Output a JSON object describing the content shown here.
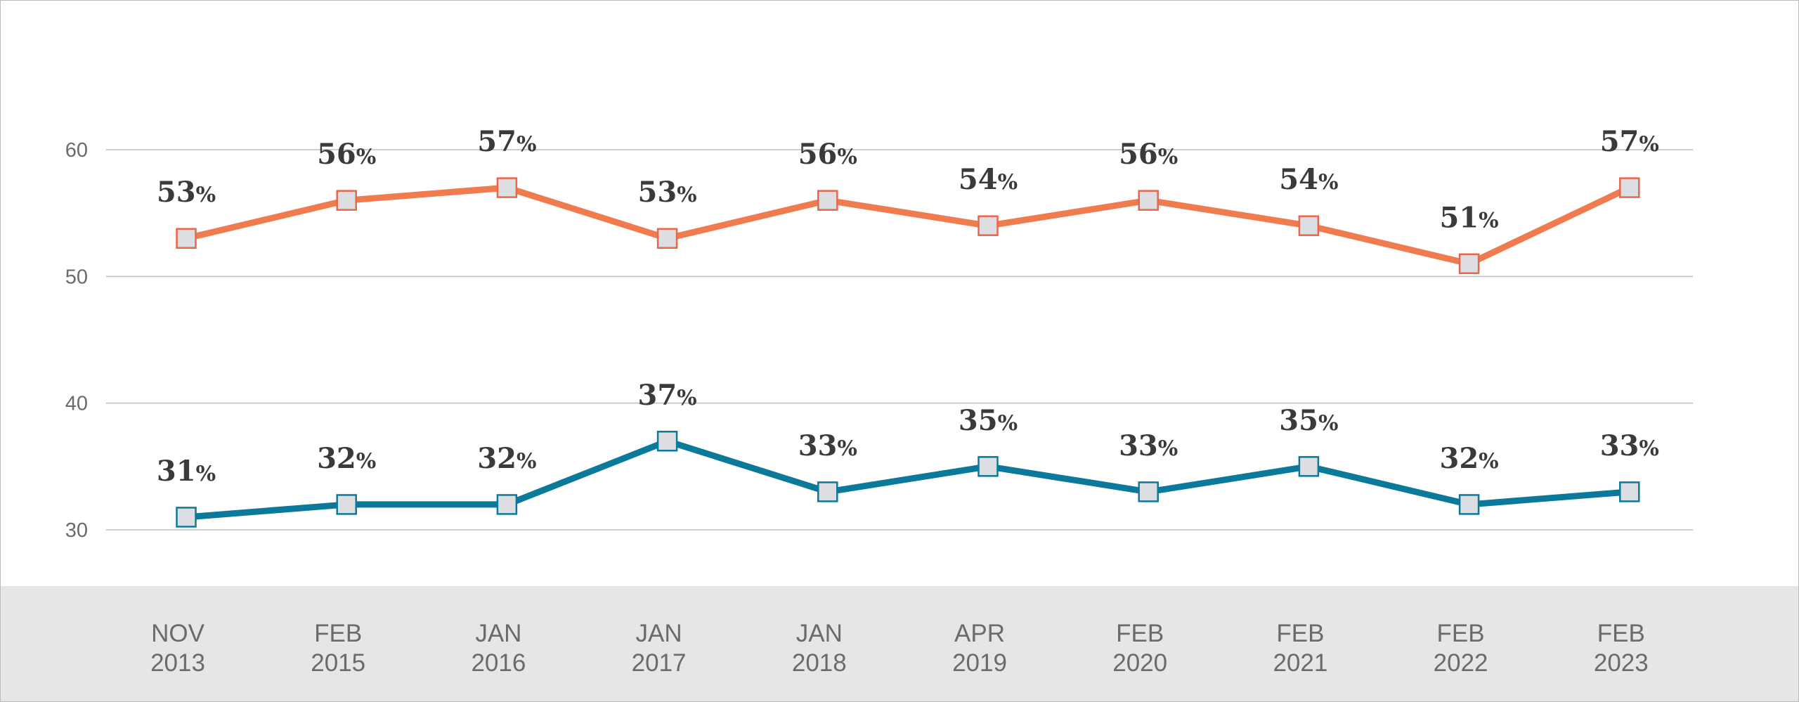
{
  "chart_data": {
    "type": "line",
    "x": [
      [
        "NOV",
        "2013"
      ],
      [
        "FEB",
        "2015"
      ],
      [
        "JAN",
        "2016"
      ],
      [
        "JAN",
        "2017"
      ],
      [
        "JAN",
        "2018"
      ],
      [
        "APR",
        "2019"
      ],
      [
        "FEB",
        "2020"
      ],
      [
        "FEB",
        "2021"
      ],
      [
        "FEB",
        "2022"
      ],
      [
        "FEB",
        "2023"
      ]
    ],
    "series": [
      {
        "values": [
          53,
          56,
          57,
          53,
          56,
          54,
          56,
          54,
          51,
          57
        ],
        "labels": [
          "53",
          "56",
          "57",
          "53",
          "56",
          "54",
          "56",
          "54",
          "51",
          "57"
        ],
        "color": "#ef7b4f",
        "marker_stroke": "#e8674c"
      },
      {
        "values": [
          31,
          32,
          32,
          37,
          33,
          35,
          33,
          35,
          32,
          33
        ],
        "labels": [
          "31",
          "32",
          "32",
          "37",
          "33",
          "35",
          "33",
          "35",
          "32",
          "33"
        ],
        "color": "#0b7a9a",
        "marker_stroke": "#0b7a9a"
      }
    ],
    "label_suffix": "%",
    "yticks": [
      "30",
      "40",
      "50",
      "60"
    ],
    "ytick_values": [
      30,
      40,
      50,
      60
    ],
    "ylim": [
      30,
      60
    ],
    "grid": true,
    "title": "",
    "xlabel": "",
    "ylabel": ""
  },
  "colors": {
    "grid": "#bdbdbd",
    "axis_band": "#e5e6e8",
    "marker_fill": "#dcdee1",
    "tick_text": "#6b6b6b",
    "label_text": "#3a3a3a"
  }
}
